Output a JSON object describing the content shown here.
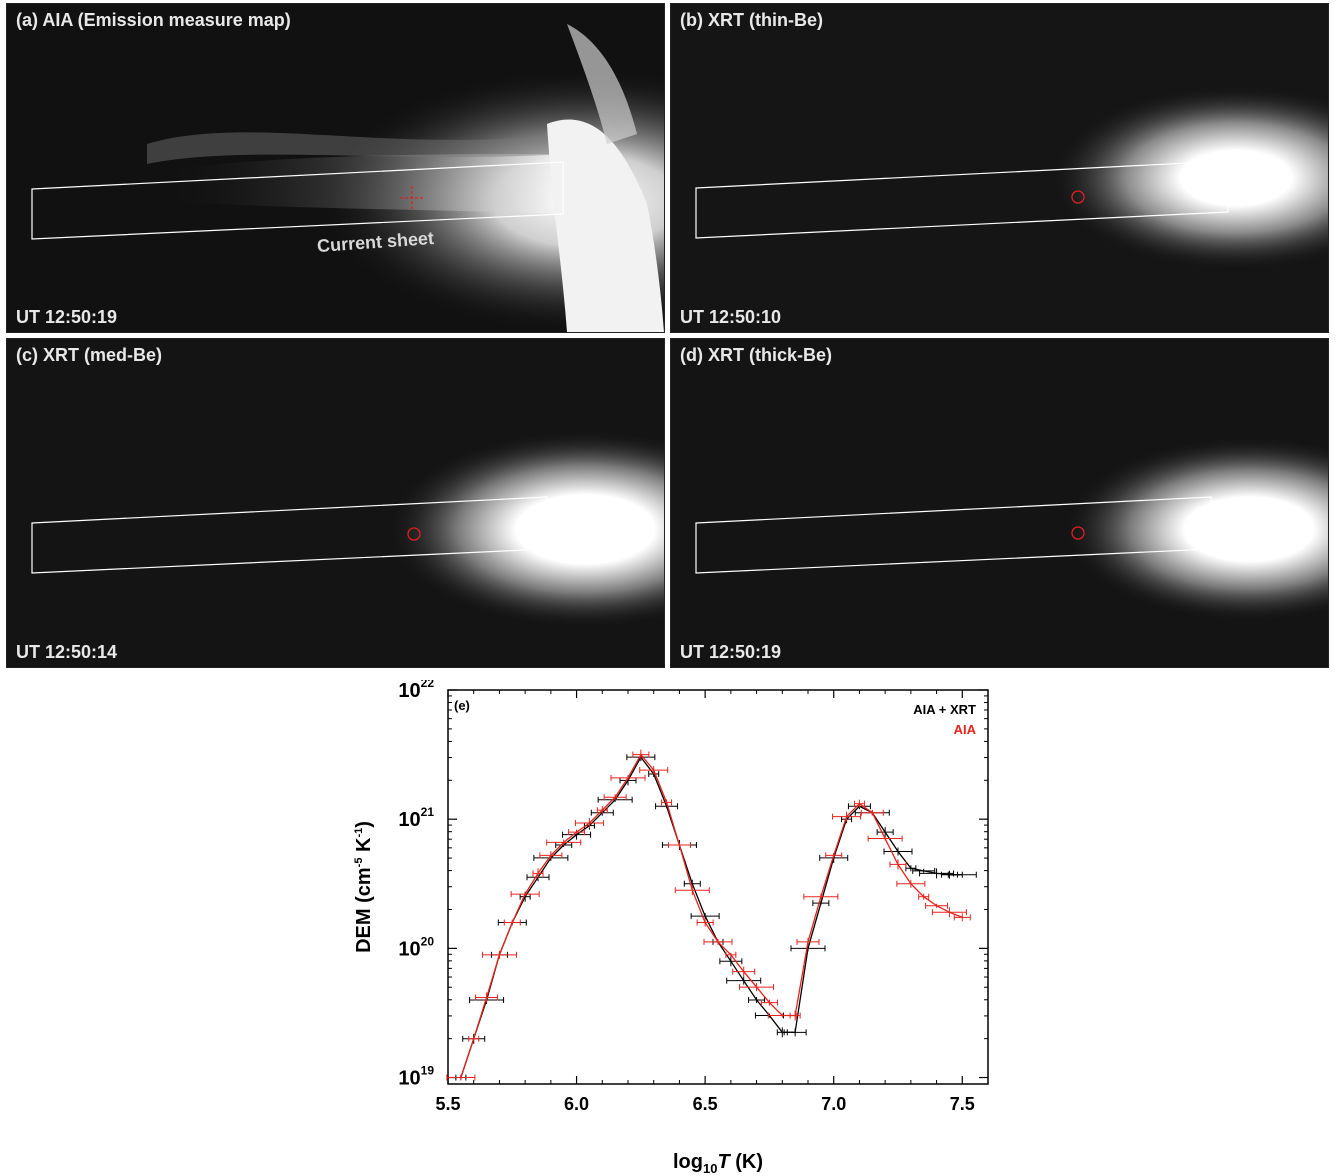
{
  "panels": [
    {
      "id": "a",
      "title": "(a) AIA (Emission measure map)",
      "time": "UT 12:50:19",
      "annotation": "Current sheet",
      "marker": "cross"
    },
    {
      "id": "b",
      "title": "(b) XRT (thin-Be)",
      "time": "UT 12:50:10",
      "marker": "circle"
    },
    {
      "id": "c",
      "title": "(c) XRT (med-Be)",
      "time": "UT 12:50:14",
      "marker": "circle"
    },
    {
      "id": "d",
      "title": "(d) XRT (thick-Be)",
      "time": "UT 12:50:19",
      "marker": "circle"
    }
  ],
  "chart_data": {
    "type": "line",
    "panel_label": "(e)",
    "xlabel_base": "log",
    "xlabel_sub": "10",
    "xlabel_var": "T",
    "xlabel_unit": " (K)",
    "ylabel": "DEM (cm",
    "ylabel_exp1": "-5",
    "ylabel_mid": " K",
    "ylabel_exp2": "-1",
    "ylabel_end": ")",
    "xlim": [
      5.5,
      7.6
    ],
    "ylim_log": [
      18.95,
      22.0
    ],
    "yscale": "log",
    "xticks": [
      "5.5",
      "6.0",
      "6.5",
      "7.0",
      "7.5"
    ],
    "yticks": [
      {
        "base": "10",
        "exp": "19",
        "v": 19
      },
      {
        "base": "10",
        "exp": "20",
        "v": 20
      },
      {
        "base": "10",
        "exp": "21",
        "v": 21
      },
      {
        "base": "10",
        "exp": "22",
        "v": 22
      }
    ],
    "legend_position": "top-right",
    "series": [
      {
        "name": "AIA + XRT",
        "color": "#000000",
        "x": [
          5.55,
          5.6,
          5.65,
          5.7,
          5.75,
          5.8,
          5.85,
          5.9,
          5.95,
          6.0,
          6.05,
          6.1,
          6.15,
          6.2,
          6.25,
          6.3,
          6.35,
          6.4,
          6.45,
          6.5,
          6.55,
          6.6,
          6.65,
          6.7,
          6.75,
          6.8,
          6.85,
          6.9,
          6.95,
          7.0,
          7.05,
          7.1,
          7.15,
          7.2,
          7.25,
          7.3,
          7.35,
          7.4,
          7.45,
          7.5
        ],
        "y": [
          19.0,
          19.3,
          19.6,
          19.95,
          20.2,
          20.4,
          20.55,
          20.7,
          20.8,
          20.88,
          20.95,
          21.05,
          21.15,
          21.3,
          21.48,
          21.35,
          21.1,
          20.8,
          20.5,
          20.25,
          20.05,
          19.9,
          19.75,
          19.6,
          19.48,
          19.35,
          19.35,
          20.0,
          20.35,
          20.7,
          21.0,
          21.1,
          21.05,
          20.9,
          20.75,
          20.62,
          20.6,
          20.58,
          20.57,
          20.57
        ]
      },
      {
        "name": "AIA",
        "color": "#e8231c",
        "x": [
          5.55,
          5.6,
          5.65,
          5.7,
          5.75,
          5.8,
          5.85,
          5.9,
          5.95,
          6.0,
          6.05,
          6.1,
          6.15,
          6.2,
          6.25,
          6.3,
          6.35,
          6.4,
          6.45,
          6.5,
          6.55,
          6.6,
          6.65,
          6.7,
          6.75,
          6.8,
          6.85,
          6.9,
          6.95,
          7.0,
          7.05,
          7.1,
          7.15,
          7.2,
          7.25,
          7.3,
          7.35,
          7.4,
          7.45,
          7.5
        ],
        "y": [
          19.0,
          19.3,
          19.62,
          19.95,
          20.2,
          20.42,
          20.58,
          20.72,
          20.82,
          20.9,
          20.97,
          21.07,
          21.17,
          21.32,
          21.5,
          21.38,
          21.13,
          20.8,
          20.45,
          20.2,
          20.05,
          19.95,
          19.82,
          19.7,
          19.58,
          19.48,
          19.48,
          20.05,
          20.4,
          20.72,
          21.02,
          21.12,
          21.05,
          20.85,
          20.65,
          20.5,
          20.4,
          20.33,
          20.28,
          20.24
        ]
      }
    ]
  }
}
